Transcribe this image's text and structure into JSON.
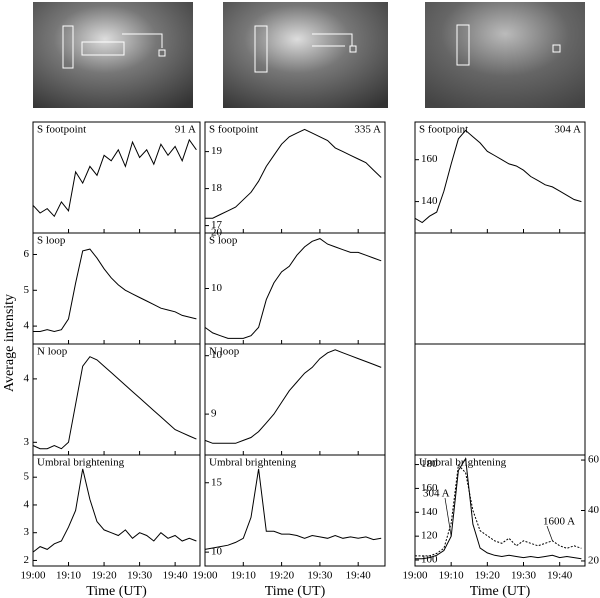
{
  "ylabel": "Average intensity",
  "chart_data": [
    {
      "type": "line",
      "title": "S footpoint",
      "channel": "91 A",
      "x": [
        0,
        2,
        4,
        6,
        8,
        10,
        12,
        14,
        16,
        18,
        20,
        22,
        24,
        26,
        28,
        30,
        32,
        34,
        36,
        38,
        40,
        42,
        44,
        46
      ],
      "values": [
        2.5,
        1.8,
        2.2,
        1.5,
        2.8,
        2,
        5.5,
        4.5,
        6,
        5.2,
        7,
        6.5,
        7.5,
        6,
        8.2,
        6.8,
        7.5,
        6.2,
        8,
        7,
        7.8,
        6.5,
        8.4,
        7.5
      ],
      "xlim": [
        0,
        47
      ],
      "xticks": [
        {
          "value": 0,
          "label": "19:00"
        },
        {
          "value": 10,
          "label": "19:10"
        },
        {
          "value": 20,
          "label": "19:20"
        },
        {
          "value": 30,
          "label": "19:30"
        },
        {
          "value": 40,
          "label": "19:40"
        }
      ],
      "ylim": [
        0,
        10
      ],
      "yticks": []
    },
    {
      "type": "line",
      "title": "S loop",
      "x": [
        0,
        2,
        4,
        6,
        8,
        10,
        12,
        14,
        16,
        18,
        20,
        22,
        24,
        26,
        28,
        30,
        32,
        34,
        36,
        38,
        40,
        42,
        44,
        46
      ],
      "values": [
        3.85,
        3.85,
        3.9,
        3.85,
        3.9,
        4.2,
        5.2,
        6.1,
        6.15,
        5.9,
        5.6,
        5.35,
        5.15,
        5.0,
        4.9,
        4.8,
        4.7,
        4.6,
        4.5,
        4.45,
        4.4,
        4.3,
        4.25,
        4.2
      ],
      "xlim": [
        0,
        47
      ],
      "xticks": [
        {
          "value": 0,
          "label": "19:00"
        },
        {
          "value": 10,
          "label": "19:10"
        },
        {
          "value": 20,
          "label": "19:20"
        },
        {
          "value": 30,
          "label": "19:30"
        },
        {
          "value": 40,
          "label": "19:40"
        }
      ],
      "ylim": [
        3.5,
        6.6
      ],
      "yticks": [
        4,
        5,
        6
      ]
    },
    {
      "type": "line",
      "title": "N loop",
      "x": [
        0,
        2,
        4,
        6,
        8,
        10,
        12,
        14,
        16,
        18,
        20,
        22,
        24,
        26,
        28,
        30,
        32,
        34,
        36,
        38,
        40,
        42,
        44,
        46
      ],
      "values": [
        2.95,
        2.9,
        2.9,
        2.95,
        2.9,
        3.0,
        3.6,
        4.2,
        4.35,
        4.3,
        4.2,
        4.1,
        4.0,
        3.9,
        3.8,
        3.7,
        3.6,
        3.5,
        3.4,
        3.3,
        3.2,
        3.15,
        3.1,
        3.05
      ],
      "xlim": [
        0,
        47
      ],
      "xticks": [
        {
          "value": 0,
          "label": "19:00"
        },
        {
          "value": 10,
          "label": "19:10"
        },
        {
          "value": 20,
          "label": "19:20"
        },
        {
          "value": 30,
          "label": "19:30"
        },
        {
          "value": 40,
          "label": "19:40"
        }
      ],
      "ylim": [
        2.8,
        4.55
      ],
      "yticks": [
        3,
        4
      ]
    },
    {
      "type": "line",
      "title": "Umbral brightening",
      "xlabel": "Time (UT)",
      "x": [
        0,
        2,
        4,
        6,
        8,
        10,
        12,
        14,
        16,
        18,
        20,
        22,
        24,
        26,
        28,
        30,
        32,
        34,
        36,
        38,
        40,
        42,
        44,
        46
      ],
      "values": [
        2.3,
        2.5,
        2.4,
        2.6,
        2.7,
        3.2,
        3.8,
        5.3,
        4.2,
        3.4,
        3.1,
        3.0,
        2.9,
        3.1,
        2.8,
        3.0,
        2.9,
        2.7,
        3.0,
        2.8,
        2.9,
        2.7,
        2.8,
        2.7
      ],
      "xlim": [
        0,
        47
      ],
      "xticks": [
        {
          "value": 0,
          "label": "19:00"
        },
        {
          "value": 10,
          "label": "19:10"
        },
        {
          "value": 20,
          "label": "19:20"
        },
        {
          "value": 30,
          "label": "19:30"
        },
        {
          "value": 40,
          "label": "19:40"
        }
      ],
      "ylim": [
        1.8,
        5.8
      ],
      "yticks": [
        2,
        3,
        4,
        5
      ]
    },
    {
      "type": "line",
      "title": "S footpoint",
      "channel": "335 A",
      "x": [
        0,
        2,
        4,
        6,
        8,
        10,
        12,
        14,
        16,
        18,
        20,
        22,
        24,
        26,
        28,
        30,
        32,
        34,
        36,
        38,
        40,
        42,
        44,
        46
      ],
      "values": [
        17.2,
        17.2,
        17.3,
        17.4,
        17.5,
        17.7,
        17.9,
        18.2,
        18.6,
        18.9,
        19.2,
        19.4,
        19.5,
        19.6,
        19.5,
        19.4,
        19.3,
        19.1,
        19.0,
        18.9,
        18.8,
        18.7,
        18.5,
        18.3
      ],
      "xlim": [
        0,
        47
      ],
      "xticks": [
        {
          "value": 0,
          "label": "19:00"
        },
        {
          "value": 10,
          "label": "19:10"
        },
        {
          "value": 20,
          "label": "19:20"
        },
        {
          "value": 30,
          "label": "19:30"
        },
        {
          "value": 40,
          "label": "19:40"
        }
      ],
      "ylim": [
        16.8,
        19.8
      ],
      "yticks": [
        17,
        18,
        19
      ]
    },
    {
      "type": "line",
      "title": "S loop",
      "x": [
        0,
        2,
        4,
        6,
        8,
        10,
        12,
        14,
        16,
        18,
        20,
        22,
        24,
        26,
        28,
        30,
        32,
        34,
        36,
        38,
        40,
        42,
        44,
        46
      ],
      "values": [
        3,
        2,
        1.5,
        1,
        1,
        1,
        1.5,
        3,
        8,
        11,
        13,
        14,
        16,
        17.5,
        18.5,
        19,
        18,
        17.5,
        17,
        16.5,
        16.5,
        16,
        15.5,
        15
      ],
      "xlim": [
        0,
        47
      ],
      "xticks": [
        {
          "value": 0,
          "label": "19:00"
        },
        {
          "value": 10,
          "label": "19:10"
        },
        {
          "value": 20,
          "label": "19:20"
        },
        {
          "value": 30,
          "label": "19:30"
        },
        {
          "value": 40,
          "label": "19:40"
        }
      ],
      "ylim": [
        0,
        20
      ],
      "yticks": [
        10,
        20
      ]
    },
    {
      "type": "line",
      "title": "N loop",
      "x": [
        0,
        2,
        4,
        6,
        8,
        10,
        12,
        14,
        16,
        18,
        20,
        22,
        24,
        26,
        28,
        30,
        32,
        34,
        36,
        38,
        40,
        42,
        44,
        46
      ],
      "values": [
        8.55,
        8.5,
        8.5,
        8.5,
        8.5,
        8.55,
        8.6,
        8.7,
        8.85,
        9.0,
        9.2,
        9.4,
        9.55,
        9.7,
        9.8,
        9.95,
        10.05,
        10.1,
        10.05,
        10.0,
        9.95,
        9.9,
        9.85,
        9.8
      ],
      "xlim": [
        0,
        47
      ],
      "xticks": [
        {
          "value": 0,
          "label": "19:00"
        },
        {
          "value": 10,
          "label": "19:10"
        },
        {
          "value": 20,
          "label": "19:20"
        },
        {
          "value": 30,
          "label": "19:30"
        },
        {
          "value": 40,
          "label": "19:40"
        }
      ],
      "ylim": [
        8.3,
        10.2
      ],
      "yticks": [
        9,
        10
      ]
    },
    {
      "type": "line",
      "title": "Umbral brightening",
      "xlabel": "Time (UT)",
      "x": [
        0,
        2,
        4,
        6,
        8,
        10,
        12,
        14,
        16,
        18,
        20,
        22,
        24,
        26,
        28,
        30,
        32,
        34,
        36,
        38,
        40,
        42,
        44,
        46
      ],
      "values": [
        10.2,
        10.3,
        10.4,
        10.5,
        10.7,
        11,
        12.5,
        16,
        11.5,
        11.5,
        11.3,
        11.3,
        11.2,
        11.0,
        11.2,
        11.1,
        11.0,
        11.2,
        11.0,
        11.1,
        11.0,
        11.1,
        10.9,
        11.0
      ],
      "xlim": [
        0,
        47
      ],
      "xticks": [
        {
          "value": 0,
          "label": "19:00"
        },
        {
          "value": 10,
          "label": "19:10"
        },
        {
          "value": 20,
          "label": "19:20"
        },
        {
          "value": 30,
          "label": "19:30"
        },
        {
          "value": 40,
          "label": "19:40"
        }
      ],
      "ylim": [
        9,
        17
      ],
      "yticks": [
        10,
        15
      ]
    },
    {
      "type": "line",
      "title": "S footpoint",
      "channel": "304 A",
      "x": [
        0,
        2,
        4,
        6,
        8,
        10,
        12,
        14,
        16,
        18,
        20,
        22,
        24,
        26,
        28,
        30,
        32,
        34,
        36,
        38,
        40,
        42,
        44,
        46
      ],
      "values": [
        132,
        130,
        133,
        135,
        145,
        158,
        170,
        174,
        171,
        168,
        164,
        162,
        160,
        158,
        157,
        155,
        152,
        150,
        148,
        147,
        145,
        143,
        141,
        140
      ],
      "xlim": [
        0,
        47
      ],
      "xticks": [
        {
          "value": 0,
          "label": "19:00"
        },
        {
          "value": 10,
          "label": "19:10"
        },
        {
          "value": 20,
          "label": "19:20"
        },
        {
          "value": 30,
          "label": "19:30"
        },
        {
          "value": 40,
          "label": "19:40"
        }
      ],
      "ylim": [
        125,
        178
      ],
      "yticks": [
        140,
        160
      ]
    },
    {
      "type": "line",
      "title": "Umbral brightening",
      "xlabel": "Time (UT)",
      "x": [
        0,
        2,
        4,
        6,
        8,
        10,
        12,
        14,
        16,
        18,
        20,
        22,
        24,
        26,
        28,
        30,
        32,
        34,
        36,
        38,
        40,
        42,
        44,
        46
      ],
      "series": [
        {
          "name": "304 A",
          "color": "#000000",
          "values": [
            101,
            101,
            102,
            104,
            108,
            120,
            175,
            185,
            130,
            110,
            106,
            104,
            103,
            104,
            103,
            102,
            103,
            102,
            103,
            104,
            102,
            103,
            102,
            101
          ]
        },
        {
          "name": "1600 A",
          "color": "#000000",
          "axis": "y2",
          "values": [
            22,
            22,
            22,
            23,
            25,
            35,
            58,
            55,
            40,
            32,
            30,
            28,
            27,
            29,
            26,
            28,
            27,
            26,
            27,
            28,
            26,
            25,
            26,
            25
          ]
        }
      ],
      "xlim": [
        0,
        47
      ],
      "xticks": [
        {
          "value": 0,
          "label": "19:00"
        },
        {
          "value": 10,
          "label": "19:10"
        },
        {
          "value": 20,
          "label": "19:20"
        },
        {
          "value": 30,
          "label": "19:30"
        },
        {
          "value": 40,
          "label": "19:40"
        }
      ],
      "ylim": [
        95,
        188
      ],
      "yticks": [
        100,
        120,
        140,
        160,
        180
      ],
      "y2lim": [
        18,
        62
      ],
      "y2ticks": [
        20,
        40,
        60
      ]
    }
  ]
}
